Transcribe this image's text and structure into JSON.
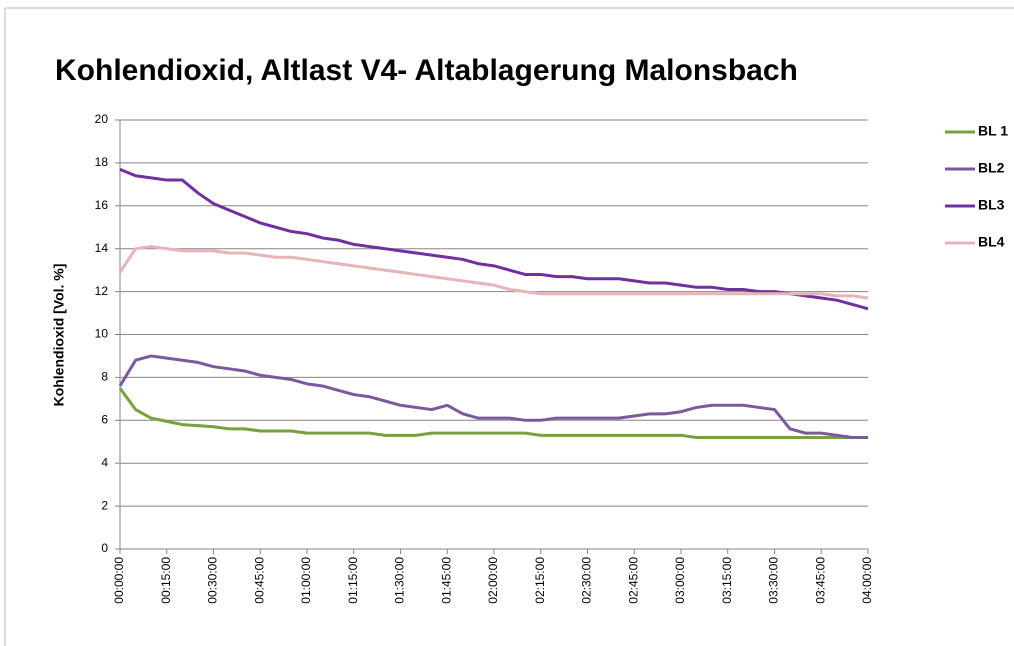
{
  "chart_data": {
    "type": "line",
    "title": "Kohlendioxid, Altlast V4- Altablagerung Malonsbach",
    "y_label": "Kohlendioxid [Vol. %]",
    "x": [
      0,
      5,
      10,
      15,
      20,
      25,
      30,
      35,
      40,
      45,
      50,
      55,
      60,
      65,
      70,
      75,
      80,
      85,
      90,
      95,
      100,
      105,
      110,
      115,
      120,
      125,
      130,
      135,
      140,
      145,
      150,
      155,
      160,
      165,
      170,
      175,
      180,
      185,
      190,
      195,
      200,
      205,
      210,
      215,
      220,
      225,
      230,
      235,
      240
    ],
    "xlim": [
      0,
      240
    ],
    "xticks": [
      {
        "value": 0,
        "label": "00:00:00"
      },
      {
        "value": 15,
        "label": "00:15:00"
      },
      {
        "value": 30,
        "label": "00:30:00"
      },
      {
        "value": 45,
        "label": "00:45:00"
      },
      {
        "value": 60,
        "label": "01:00:00"
      },
      {
        "value": 75,
        "label": "01:15:00"
      },
      {
        "value": 90,
        "label": "01:30:00"
      },
      {
        "value": 105,
        "label": "01:45:00"
      },
      {
        "value": 120,
        "label": "02:00:00"
      },
      {
        "value": 135,
        "label": "02:15:00"
      },
      {
        "value": 150,
        "label": "02:30:00"
      },
      {
        "value": 165,
        "label": "02:45:00"
      },
      {
        "value": 180,
        "label": "03:00:00"
      },
      {
        "value": 195,
        "label": "03:15:00"
      },
      {
        "value": 210,
        "label": "03:30:00"
      },
      {
        "value": 225,
        "label": "03:45:00"
      },
      {
        "value": 240,
        "label": "04:00:00"
      }
    ],
    "ylim": [
      0,
      20
    ],
    "yticks": [
      0,
      2,
      4,
      6,
      8,
      10,
      12,
      14,
      16,
      18,
      20
    ],
    "grid": true,
    "legend": "right",
    "series": [
      {
        "name": "BL 1",
        "color": "#77a13c",
        "values": [
          7.5,
          6.5,
          6.1,
          5.95,
          5.8,
          5.75,
          5.7,
          5.6,
          5.6,
          5.5,
          5.5,
          5.5,
          5.4,
          5.4,
          5.4,
          5.4,
          5.4,
          5.3,
          5.3,
          5.3,
          5.4,
          5.4,
          5.4,
          5.4,
          5.4,
          5.4,
          5.4,
          5.3,
          5.3,
          5.3,
          5.3,
          5.3,
          5.3,
          5.3,
          5.3,
          5.3,
          5.3,
          5.2,
          5.2,
          5.2,
          5.2,
          5.2,
          5.2,
          5.2,
          5.2,
          5.2,
          5.2,
          5.2,
          5.2
        ]
      },
      {
        "name": "BL2",
        "color": "#7a5a9c",
        "values": [
          7.6,
          8.8,
          9.0,
          8.9,
          8.8,
          8.7,
          8.5,
          8.4,
          8.3,
          8.1,
          8.0,
          7.9,
          7.7,
          7.6,
          7.4,
          7.2,
          7.1,
          6.9,
          6.7,
          6.6,
          6.5,
          6.7,
          6.3,
          6.1,
          6.1,
          6.1,
          6.0,
          6.0,
          6.1,
          6.1,
          6.1,
          6.1,
          6.1,
          6.2,
          6.3,
          6.3,
          6.4,
          6.6,
          6.7,
          6.7,
          6.7,
          6.6,
          6.5,
          5.6,
          5.4,
          5.4,
          5.3,
          5.2,
          5.2
        ]
      },
      {
        "name": "BL3",
        "color": "#7030a0",
        "values": [
          17.7,
          17.4,
          17.3,
          17.2,
          17.2,
          16.6,
          16.1,
          15.8,
          15.5,
          15.2,
          15.0,
          14.8,
          14.7,
          14.5,
          14.4,
          14.2,
          14.1,
          14.0,
          13.9,
          13.8,
          13.7,
          13.6,
          13.5,
          13.3,
          13.2,
          13.0,
          12.8,
          12.8,
          12.7,
          12.7,
          12.6,
          12.6,
          12.6,
          12.5,
          12.4,
          12.4,
          12.3,
          12.2,
          12.2,
          12.1,
          12.1,
          12.0,
          12.0,
          11.9,
          11.8,
          11.7,
          11.6,
          11.4,
          11.2
        ]
      },
      {
        "name": "BL4",
        "color": "#e8b4b8",
        "values": [
          12.9,
          14.0,
          14.1,
          14.0,
          13.9,
          13.9,
          13.9,
          13.8,
          13.8,
          13.7,
          13.6,
          13.6,
          13.5,
          13.4,
          13.3,
          13.2,
          13.1,
          13.0,
          12.9,
          12.8,
          12.7,
          12.6,
          12.5,
          12.4,
          12.3,
          12.1,
          12.0,
          11.9,
          11.9,
          11.9,
          11.9,
          11.9,
          11.9,
          11.9,
          11.9,
          11.9,
          11.9,
          11.9,
          11.9,
          11.9,
          11.9,
          11.9,
          11.9,
          11.9,
          11.9,
          11.9,
          11.8,
          11.8,
          11.7
        ]
      }
    ]
  }
}
